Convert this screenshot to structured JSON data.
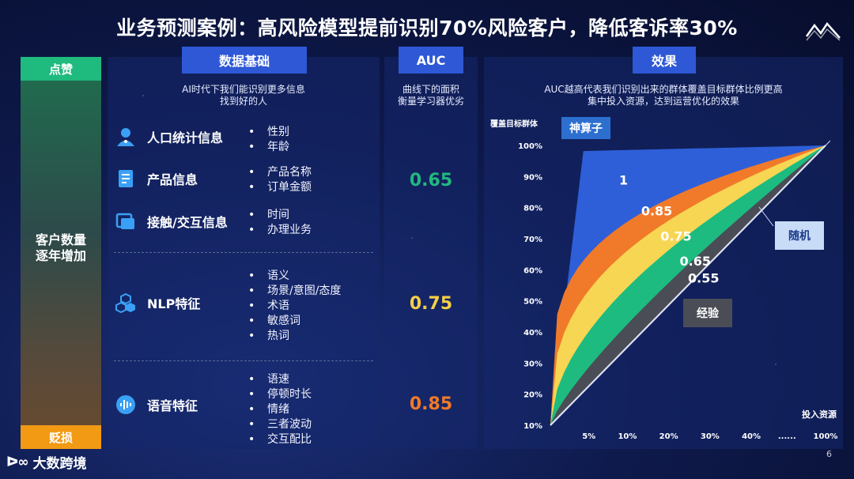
{
  "title": "业务预测案例：高风险模型提前识别70%风险客户，降低客诉率30%",
  "strip": {
    "top": "点赞",
    "middle_line1": "客户数量",
    "middle_line2": "逐年增加",
    "bottom": "贬损"
  },
  "data_panel": {
    "header": "数据基础",
    "sub_line1": "AI时代下我们能识别更多信息",
    "sub_line2": "找到好的人",
    "features": [
      {
        "label": "人口统计信息",
        "icon": "person-icon",
        "bullets": [
          "性别",
          "年龄"
        ]
      },
      {
        "label": "产品信息",
        "icon": "document-icon",
        "bullets": [
          "产品名称",
          "订单金额"
        ]
      },
      {
        "label": "接触/交互信息",
        "icon": "window-icon",
        "bullets": [
          "时间",
          "办理业务"
        ]
      },
      {
        "label": "NLP特征",
        "icon": "cubes-icon",
        "bullets": [
          "语义",
          "场景/意图/态度",
          "术语",
          "敏感词",
          "热词"
        ]
      },
      {
        "label": "语音特征",
        "icon": "voice-wave-icon",
        "bullets": [
          "语速",
          "停顿时长",
          "情绪",
          "三者波动",
          "交互配比"
        ]
      }
    ]
  },
  "auc_panel": {
    "header": "AUC",
    "sub_line1": "曲线下的面积",
    "sub_line2": "衡量学习器优劣",
    "values": [
      {
        "text": "0.65",
        "color": "#21b97e"
      },
      {
        "text": "0.75",
        "color": "#f5d045"
      },
      {
        "text": "0.85",
        "color": "#f07a2a"
      }
    ]
  },
  "effect_panel": {
    "header": "效果",
    "sub_line1": "AUC越高代表我们识别出来的群体覆盖目标群体比例更高",
    "sub_line2": "集中投入资源，达到运营优化的效果"
  },
  "chart_data": {
    "type": "area",
    "ylabel": "覆盖目标群体",
    "xlabel": "投入资源",
    "y_ticks": [
      "10%",
      "20%",
      "30%",
      "40%",
      "50%",
      "60%",
      "70%",
      "80%",
      "90%",
      "100%"
    ],
    "x_ticks": [
      "5%",
      "10%",
      "20%",
      "30%",
      "40%",
      "......",
      "100%"
    ],
    "series": [
      {
        "name": "1",
        "color": "#2e5fd8"
      },
      {
        "name": "0.85",
        "color": "#f07a2a"
      },
      {
        "name": "0.75",
        "color": "#f7d653"
      },
      {
        "name": "0.65",
        "color": "#1dbb80"
      },
      {
        "name": "0.55",
        "color": "#4a4d55"
      }
    ],
    "callouts": {
      "perfect": "神算子",
      "random": "随机",
      "experience": "经验"
    }
  },
  "footer": {
    "brand": "大数跨境",
    "page": "6"
  }
}
